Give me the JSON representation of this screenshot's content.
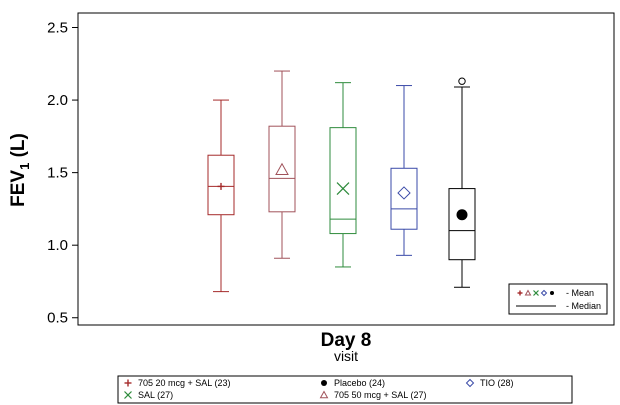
{
  "chart_data": {
    "type": "box",
    "ylabel_main": "FEV",
    "ylabel_sub": "1",
    "ylabel_unit": " (L)",
    "xlabel": "Day 8",
    "xlabel_sub": "visit",
    "ylim": [
      0.45,
      2.6
    ],
    "yticks": [
      0.5,
      1.0,
      1.5,
      2.0,
      2.5
    ],
    "ytick_labels": [
      "0.5",
      "1.0",
      "1.5",
      "2.0",
      "2.5"
    ],
    "series": [
      {
        "name": "705 20 mcg + SAL (23)",
        "color": "#a52a2a",
        "marker": "plus",
        "min": 0.68,
        "q1": 1.21,
        "median": 1.405,
        "q3": 1.62,
        "max": 2.0,
        "mean": 1.405,
        "outliers": []
      },
      {
        "name": "705 50 mcg + SAL (27)",
        "color": "#a0525a",
        "marker": "triangle",
        "min": 0.91,
        "q1": 1.23,
        "median": 1.46,
        "q3": 1.82,
        "max": 2.2,
        "mean": 1.52,
        "outliers": []
      },
      {
        "name": "SAL (27)",
        "color": "#2e8b3c",
        "marker": "x",
        "min": 0.85,
        "q1": 1.08,
        "median": 1.18,
        "q3": 1.81,
        "max": 2.12,
        "mean": 1.39,
        "outliers": []
      },
      {
        "name": "TIO (28)",
        "color": "#3a4aa8",
        "marker": "diamond",
        "min": 0.93,
        "q1": 1.11,
        "median": 1.25,
        "q3": 1.53,
        "max": 2.1,
        "mean": 1.36,
        "outliers": []
      },
      {
        "name": "Placebo (24)",
        "color": "#000000",
        "marker": "dot",
        "min": 0.71,
        "q1": 0.9,
        "median": 1.1,
        "q3": 1.39,
        "max": 2.09,
        "mean": 1.21,
        "outliers": [
          2.13
        ]
      }
    ],
    "inset_legend": {
      "mean_label": "- Mean",
      "median_label": "- Median"
    },
    "legend_order": [
      0,
      2,
      4,
      1,
      3
    ]
  }
}
